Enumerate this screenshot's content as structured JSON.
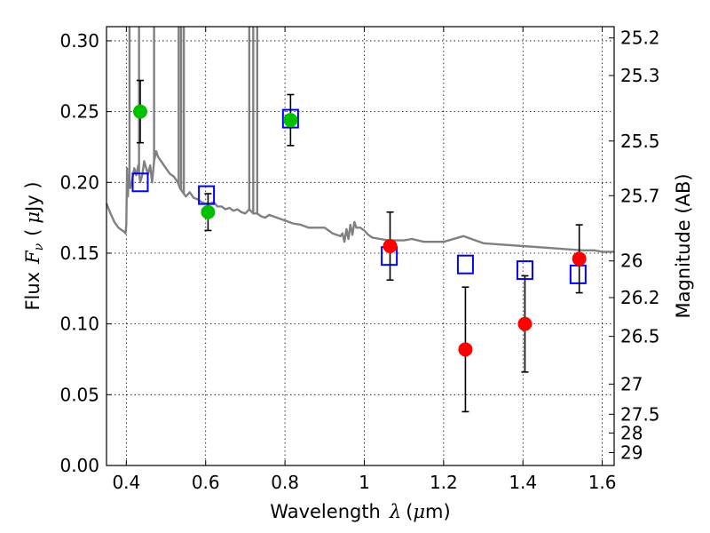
{
  "chart_data": {
    "type": "scatter",
    "xlabel": {
      "text": "Wavelength",
      "symbol": "λ",
      "unit_open": "(",
      "unit_mu": "μ",
      "unit_rest": "m)"
    },
    "ylabel": {
      "text": "Flux",
      "symbol": "F",
      "symbol_sub": "ν",
      "unit_open": "(",
      "unit_mu": "μ",
      "unit_rest": "Jy )"
    },
    "y2label": "Magnitude (AB)",
    "xlim": [
      0.35,
      1.63
    ],
    "ylim": [
      0.0,
      0.31
    ],
    "grid": true,
    "x_ticks": [
      {
        "value": 0.4,
        "label": "0.4"
      },
      {
        "value": 0.6,
        "label": "0.6"
      },
      {
        "value": 0.8,
        "label": "0.8"
      },
      {
        "value": 1.0,
        "label": "1"
      },
      {
        "value": 1.2,
        "label": "1.2"
      },
      {
        "value": 1.4,
        "label": "1.4"
      },
      {
        "value": 1.6,
        "label": "1.6"
      }
    ],
    "y_ticks": [
      {
        "value": 0.0,
        "label": "0.00"
      },
      {
        "value": 0.05,
        "label": "0.05"
      },
      {
        "value": 0.1,
        "label": "0.10"
      },
      {
        "value": 0.15,
        "label": "0.15"
      },
      {
        "value": 0.2,
        "label": "0.20"
      },
      {
        "value": 0.25,
        "label": "0.25"
      },
      {
        "value": 0.3,
        "label": "0.30"
      }
    ],
    "y2_ticks": [
      {
        "flux": 0.302,
        "label": "25.2"
      },
      {
        "flux": 0.2755,
        "label": "25.3"
      },
      {
        "flux": 0.2292,
        "label": "25.5"
      },
      {
        "flux": 0.1906,
        "label": "25.7"
      },
      {
        "flux": 0.1445,
        "label": "26"
      },
      {
        "flux": 0.1186,
        "label": "26.2"
      },
      {
        "flux": 0.0912,
        "label": "26.5"
      },
      {
        "flux": 0.0575,
        "label": "27"
      },
      {
        "flux": 0.0362,
        "label": "27.5"
      },
      {
        "flux": 0.0229,
        "label": "28"
      },
      {
        "flux": 0.0091,
        "label": "29"
      }
    ],
    "series": [
      {
        "kind": "model_spectrum",
        "color": "#808080",
        "x": [
          0.35,
          0.36,
          0.37,
          0.38,
          0.39,
          0.395,
          0.398,
          0.4,
          0.402,
          0.404,
          0.406,
          0.408,
          0.41,
          0.415,
          0.42,
          0.425,
          0.43,
          0.435,
          0.44,
          0.445,
          0.45,
          0.455,
          0.46,
          0.465,
          0.47,
          0.475,
          0.48,
          0.49,
          0.5,
          0.51,
          0.52,
          0.53,
          0.535,
          0.54,
          0.545,
          0.55,
          0.56,
          0.57,
          0.58,
          0.59,
          0.6,
          0.61,
          0.62,
          0.63,
          0.64,
          0.65,
          0.66,
          0.67,
          0.68,
          0.69,
          0.7,
          0.71,
          0.72,
          0.73,
          0.74,
          0.75,
          0.76,
          0.78,
          0.8,
          0.82,
          0.84,
          0.86,
          0.88,
          0.9,
          0.91,
          0.92,
          0.93,
          0.94,
          0.945,
          0.95,
          0.955,
          0.96,
          0.965,
          0.97,
          0.975,
          0.98,
          0.99,
          1.0,
          1.01,
          1.02,
          1.04,
          1.06,
          1.08,
          1.1,
          1.12,
          1.15,
          1.2,
          1.25,
          1.3,
          1.35,
          1.4,
          1.45,
          1.5,
          1.55,
          1.58,
          1.6,
          1.63
        ],
        "y": [
          0.185,
          0.178,
          0.172,
          0.168,
          0.166,
          0.165,
          0.164,
          0.17,
          0.21,
          0.19,
          0.205,
          0.198,
          0.196,
          0.202,
          0.21,
          0.205,
          0.212,
          0.2,
          0.205,
          0.215,
          0.21,
          0.206,
          0.212,
          0.2,
          0.215,
          0.222,
          0.218,
          0.214,
          0.21,
          0.206,
          0.204,
          0.2,
          0.196,
          0.194,
          0.192,
          0.19,
          0.193,
          0.189,
          0.188,
          0.186,
          0.185,
          0.185,
          0.186,
          0.183,
          0.183,
          0.181,
          0.182,
          0.18,
          0.181,
          0.179,
          0.178,
          0.181,
          0.178,
          0.178,
          0.176,
          0.175,
          0.177,
          0.175,
          0.173,
          0.171,
          0.17,
          0.168,
          0.168,
          0.168,
          0.166,
          0.164,
          0.163,
          0.162,
          0.164,
          0.158,
          0.167,
          0.16,
          0.17,
          0.163,
          0.172,
          0.168,
          0.168,
          0.166,
          0.163,
          0.161,
          0.16,
          0.159,
          0.159,
          0.159,
          0.16,
          0.158,
          0.158,
          0.162,
          0.157,
          0.156,
          0.155,
          0.154,
          0.153,
          0.152,
          0.152,
          0.151,
          0.151
        ]
      },
      {
        "kind": "model_spectrum_lines",
        "color": "#808080",
        "x": [
          0.408,
          0.432,
          0.47,
          0.532,
          0.538,
          0.545,
          0.71,
          0.72,
          0.73
        ],
        "y": [
          0.31,
          0.31,
          0.31,
          0.31,
          0.31,
          0.31,
          0.31,
          0.31,
          0.31
        ]
      },
      {
        "kind": "model_photometry",
        "marker": "square",
        "color": "#0000ff",
        "x": [
          0.435,
          0.602,
          0.814,
          1.063,
          1.255,
          1.405,
          1.539
        ],
        "y": [
          0.2,
          0.191,
          0.245,
          0.148,
          0.142,
          0.138,
          0.135
        ]
      },
      {
        "kind": "measured_optical",
        "marker": "circle",
        "color": "#00c000",
        "x": [
          0.435,
          0.606,
          0.814
        ],
        "y": [
          0.25,
          0.179,
          0.244
        ],
        "yerr": [
          0.022,
          0.013,
          0.018
        ]
      },
      {
        "kind": "measured_nir",
        "marker": "circle",
        "color": "#ff0000",
        "x": [
          1.065,
          1.255,
          1.405,
          1.542
        ],
        "y": [
          0.155,
          0.082,
          0.1,
          0.146
        ],
        "yerr": [
          0.024,
          0.044,
          0.034,
          0.024
        ]
      }
    ]
  }
}
